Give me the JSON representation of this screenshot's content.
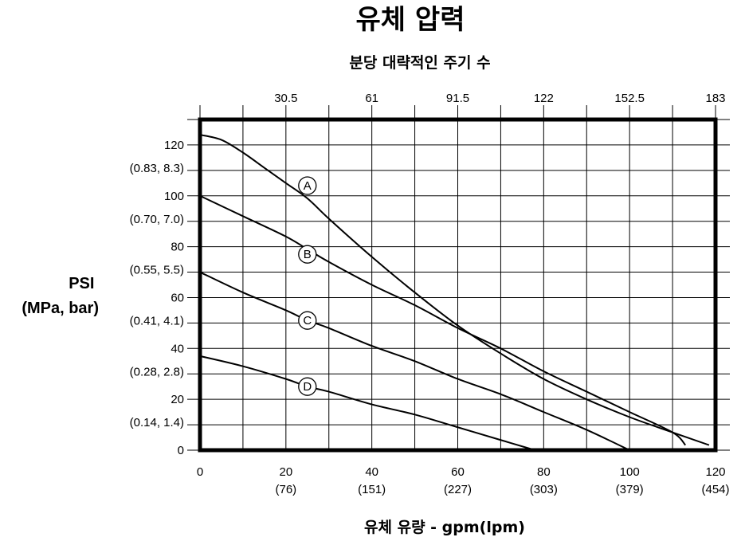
{
  "chart_data": {
    "type": "line",
    "title": "유체 압력",
    "secondary_xlabel": "분당 대략적인 주기 수",
    "xlabel": "유체 유량 - gpm(lpm)",
    "ylabel": [
      "PSI",
      "(MPa, bar)"
    ],
    "xlim": [
      0,
      120
    ],
    "ylim": [
      0,
      130
    ],
    "grid": true,
    "x_ticks": [
      {
        "value": 0,
        "label": "0",
        "sub": ""
      },
      {
        "value": 20,
        "label": "20",
        "sub": "(76)"
      },
      {
        "value": 40,
        "label": "40",
        "sub": "(151)"
      },
      {
        "value": 60,
        "label": "60",
        "sub": "(227)"
      },
      {
        "value": 80,
        "label": "80",
        "sub": "(303)"
      },
      {
        "value": 100,
        "label": "100",
        "sub": "(379)"
      },
      {
        "value": 120,
        "label": "120",
        "sub": "(454)"
      }
    ],
    "top_ticks": [
      {
        "value": 20,
        "label": "30.5"
      },
      {
        "value": 40,
        "label": "61"
      },
      {
        "value": 60,
        "label": "91.5"
      },
      {
        "value": 80,
        "label": "122"
      },
      {
        "value": 100,
        "label": "152.5"
      },
      {
        "value": 120,
        "label": "183"
      }
    ],
    "y_ticks": [
      {
        "value": 0,
        "label": "0",
        "sub": ""
      },
      {
        "value": 20,
        "label": "20",
        "sub": "(0.14, 1.4)"
      },
      {
        "value": 40,
        "label": "40",
        "sub": "(0.28, 2.8)"
      },
      {
        "value": 60,
        "label": "60",
        "sub": "(0.41, 4.1)"
      },
      {
        "value": 80,
        "label": "80",
        "sub": "(0.55, 5.5)"
      },
      {
        "value": 100,
        "label": "100",
        "sub": "(0.70, 7.0)"
      },
      {
        "value": 120,
        "label": "120",
        "sub": "(0.83, 8.3)"
      }
    ],
    "series": [
      {
        "name": "A",
        "points": [
          [
            0,
            124
          ],
          [
            5,
            122
          ],
          [
            10,
            117
          ],
          [
            15,
            111
          ],
          [
            20,
            105
          ],
          [
            25,
            99
          ],
          [
            30,
            91
          ],
          [
            40,
            76
          ],
          [
            50,
            62
          ],
          [
            60,
            49
          ],
          [
            70,
            38
          ],
          [
            80,
            28
          ],
          [
            90,
            20
          ],
          [
            100,
            13
          ],
          [
            110,
            7
          ],
          [
            118.5,
            2
          ]
        ],
        "label_at": [
          25,
          104
        ]
      },
      {
        "name": "B",
        "points": [
          [
            0,
            100
          ],
          [
            10,
            92
          ],
          [
            20,
            84
          ],
          [
            25,
            79
          ],
          [
            30,
            74
          ],
          [
            40,
            65
          ],
          [
            50,
            57
          ],
          [
            60,
            48
          ],
          [
            70,
            40
          ],
          [
            80,
            31
          ],
          [
            90,
            23
          ],
          [
            100,
            15
          ],
          [
            110,
            7
          ],
          [
            113,
            2
          ]
        ],
        "label_at": [
          25,
          77
        ]
      },
      {
        "name": "C",
        "points": [
          [
            0,
            70
          ],
          [
            10,
            62
          ],
          [
            20,
            55
          ],
          [
            25,
            51
          ],
          [
            30,
            48
          ],
          [
            40,
            41
          ],
          [
            50,
            35
          ],
          [
            60,
            28
          ],
          [
            70,
            22
          ],
          [
            80,
            15
          ],
          [
            90,
            8
          ],
          [
            100,
            0
          ]
        ],
        "label_at": [
          25,
          51
        ]
      },
      {
        "name": "D",
        "points": [
          [
            0,
            37
          ],
          [
            10,
            33
          ],
          [
            20,
            28
          ],
          [
            25,
            25
          ],
          [
            30,
            23
          ],
          [
            40,
            18
          ],
          [
            50,
            14
          ],
          [
            60,
            9
          ],
          [
            70,
            4
          ],
          [
            78,
            0
          ]
        ],
        "label_at": [
          25,
          25
        ]
      }
    ]
  }
}
